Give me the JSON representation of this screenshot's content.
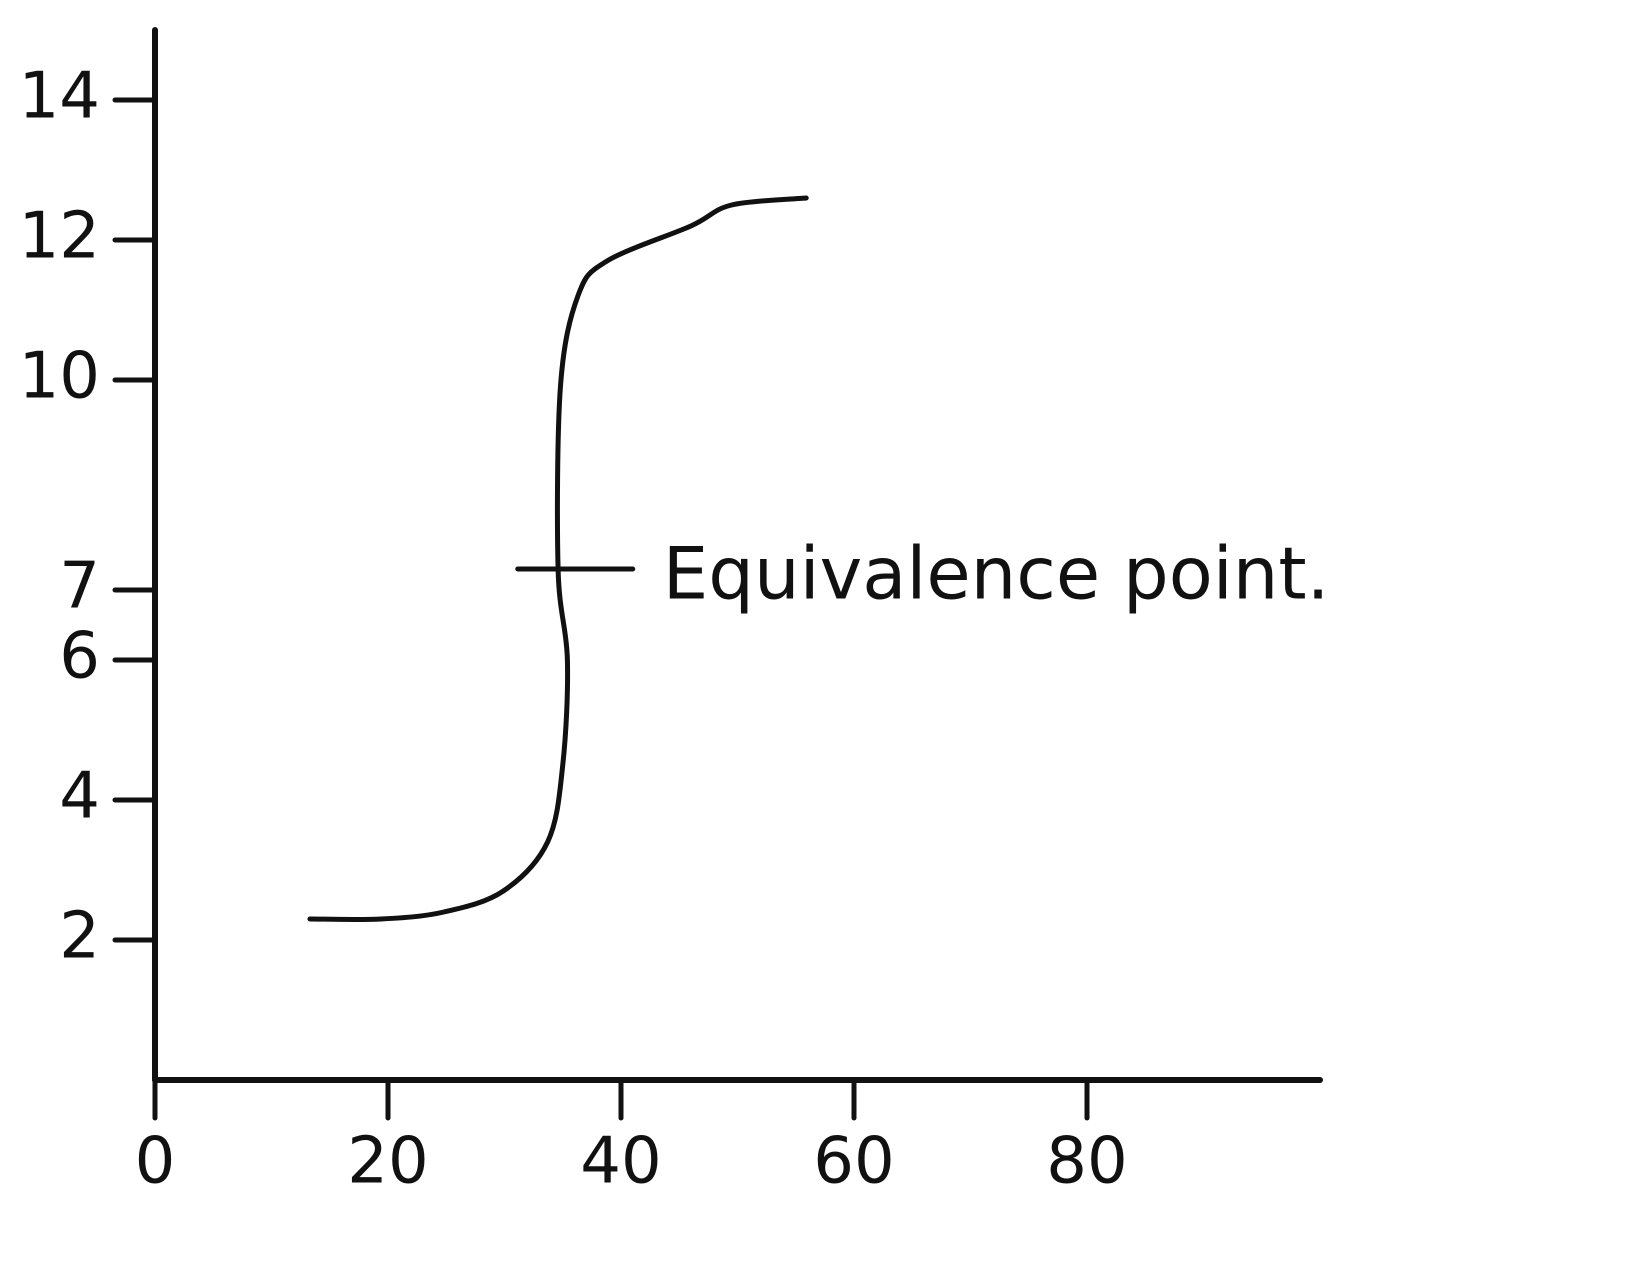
{
  "chart_data": {
    "type": "line",
    "series": [
      {
        "color": "#111111",
        "x": [
          13.3,
          19.4,
          24.8,
          29.9,
          33.7,
          35,
          35.4,
          34.6,
          34.8,
          36.3,
          38.8,
          46,
          49.5,
          55.9
        ],
        "values": [
          2.3,
          2.3,
          2.4,
          2.7,
          3.4,
          4.5,
          6,
          7.3,
          9.9,
          11.2,
          11.7,
          12.2,
          12.5,
          12.6
        ]
      }
    ],
    "xlim": [
      0,
      100
    ],
    "xticks": [
      0,
      20,
      40,
      60,
      80
    ],
    "ylim": [
      0,
      15
    ],
    "yticks": [
      2,
      4,
      6,
      7,
      10,
      12,
      14
    ],
    "annotations": [
      {
        "text": "Equivalence point.",
        "x": 35,
        "y": 7.3
      }
    ]
  }
}
